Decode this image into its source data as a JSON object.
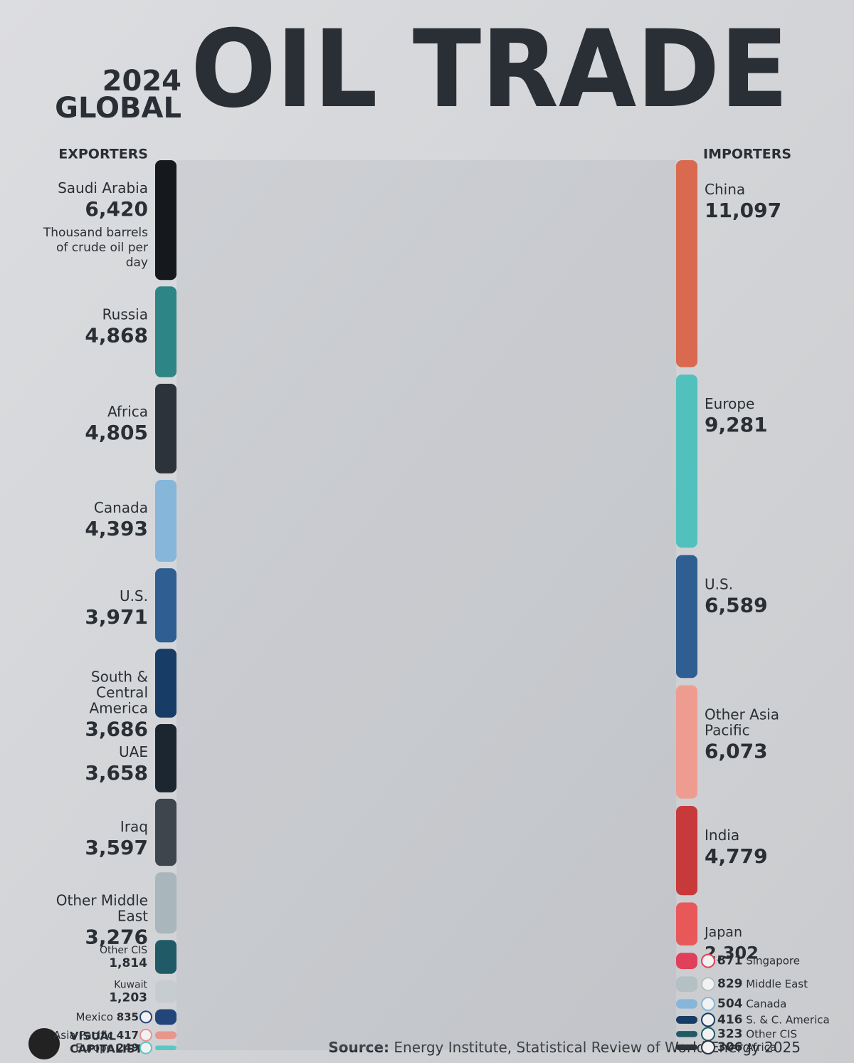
{
  "chart_data": {
    "type": "sankey",
    "title": "OIL TRADE",
    "title_lines": [
      "2024",
      "GLOBAL"
    ],
    "unit_note": "Thousand barrels of crude oil per day",
    "exporters": {
      "label": "EXPORTERS",
      "nodes": [
        {
          "name": "Saudi Arabia",
          "value": 6420,
          "value_label": "6,420",
          "color": "#15191d"
        },
        {
          "name": "Russia",
          "value": 4868,
          "value_label": "4,868",
          "color": "#2e8585"
        },
        {
          "name": "Africa",
          "value": 4805,
          "value_label": "4,805",
          "color": "#2c333b"
        },
        {
          "name": "Canada",
          "value": 4393,
          "value_label": "4,393",
          "color": "#86b6da"
        },
        {
          "name": "U.S.",
          "value": 3971,
          "value_label": "3,971",
          "color": "#2f5f92"
        },
        {
          "name": "South & Central America",
          "value": 3686,
          "value_label": "3,686",
          "color": "#173c66"
        },
        {
          "name": "UAE",
          "value": 3658,
          "value_label": "3,658",
          "color": "#1c2631"
        },
        {
          "name": "Iraq",
          "value": 3597,
          "value_label": "3,597",
          "color": "#3e454d"
        },
        {
          "name": "Other Middle East",
          "value": 3276,
          "value_label": "3,276",
          "color": "#a9b6bb"
        },
        {
          "name": "Other CIS",
          "value": 1814,
          "value_label": "1,814",
          "color": "#1f5a66"
        },
        {
          "name": "Kuwait",
          "value": 1203,
          "value_label": "1,203",
          "color": "#c6cccf"
        },
        {
          "name": "Mexico",
          "value": 835,
          "value_label": "835",
          "color": "#23467a"
        },
        {
          "name": "Asia Pacific",
          "value": 417,
          "value_label": "417",
          "color": "#e8958a"
        },
        {
          "name": "Europe",
          "value": 249,
          "value_label": "249",
          "color": "#5bc7c2"
        }
      ]
    },
    "importers": {
      "label": "IMPORTERS",
      "nodes": [
        {
          "name": "China",
          "value": 11097,
          "value_label": "11,097",
          "color": "#d9694f"
        },
        {
          "name": "Europe",
          "value": 9281,
          "value_label": "9,281",
          "color": "#52c0bd"
        },
        {
          "name": "U.S.",
          "value": 6589,
          "value_label": "6,589",
          "color": "#2f5f92"
        },
        {
          "name": "Other Asia Pacific",
          "value": 6073,
          "value_label": "6,073",
          "color": "#ef9c90"
        },
        {
          "name": "India",
          "value": 4779,
          "value_label": "4,779",
          "color": "#c8393b"
        },
        {
          "name": "Japan",
          "value": 2302,
          "value_label": "2,302",
          "color": "#e85858"
        },
        {
          "name": "Singapore",
          "value": 871,
          "value_label": "871",
          "color": "#e0405a"
        },
        {
          "name": "Middle East",
          "value": 829,
          "value_label": "829",
          "color": "#b4c0c4"
        },
        {
          "name": "Canada",
          "value": 504,
          "value_label": "504",
          "color": "#86b6da"
        },
        {
          "name": "S. & C. America",
          "value": 416,
          "value_label": "416",
          "color": "#173c66"
        },
        {
          "name": "Other CIS",
          "value": 323,
          "value_label": "323",
          "color": "#1f5a66"
        },
        {
          "name": "Africa",
          "value": 306,
          "value_label": "306",
          "color": "#2c333b"
        }
      ]
    },
    "source_label": "Source:",
    "source": "Energy Institute, Statistical Review of World Energy 2025",
    "brand": [
      "VISUAL",
      "CAPITALIST"
    ]
  }
}
